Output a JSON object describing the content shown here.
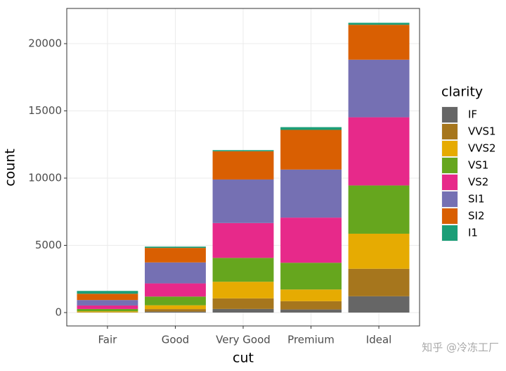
{
  "chart_data": {
    "type": "stacked_bar",
    "x_label": "cut",
    "y_label": "count",
    "legend_title": "clarity",
    "categories": [
      "Fair",
      "Good",
      "Very Good",
      "Premium",
      "Ideal"
    ],
    "series": [
      {
        "name": "IF",
        "color": "#666666",
        "values": [
          9,
          71,
          268,
          230,
          1212
        ]
      },
      {
        "name": "VVS1",
        "color": "#A6761D",
        "values": [
          17,
          186,
          789,
          616,
          2047
        ]
      },
      {
        "name": "VVS2",
        "color": "#E6AB02",
        "values": [
          69,
          286,
          1235,
          870,
          2606
        ]
      },
      {
        "name": "VS1",
        "color": "#66A61E",
        "values": [
          170,
          648,
          1775,
          1989,
          3589
        ]
      },
      {
        "name": "VS2",
        "color": "#E7298A",
        "values": [
          261,
          978,
          2591,
          3357,
          5071
        ]
      },
      {
        "name": "SI1",
        "color": "#7570B3",
        "values": [
          408,
          1560,
          3240,
          3575,
          4282
        ]
      },
      {
        "name": "SI2",
        "color": "#D95F02",
        "values": [
          466,
          1081,
          2100,
          2949,
          2598
        ]
      },
      {
        "name": "I1",
        "color": "#1B9E77",
        "values": [
          210,
          96,
          84,
          205,
          146
        ]
      }
    ],
    "ylim": [
      -995,
      22618
    ],
    "yticks": [
      0,
      5000,
      10000,
      15000,
      20000
    ],
    "grid": true,
    "legend_position": "right",
    "watermark": "知乎 @冷冻工厂"
  }
}
